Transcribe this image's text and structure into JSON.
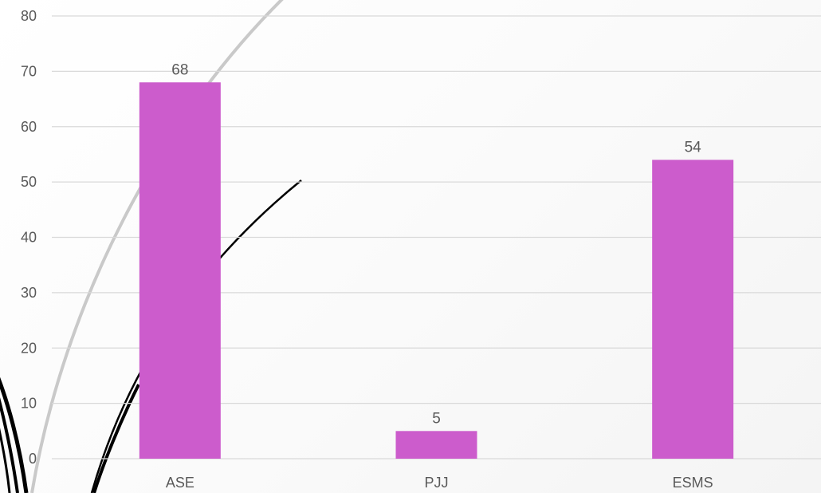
{
  "chart_data": {
    "type": "bar",
    "categories": [
      "ASE",
      "PJJ",
      "ESMS"
    ],
    "values": [
      68,
      5,
      54
    ],
    "data_labels": [
      "68",
      "5",
      "54"
    ],
    "title": "",
    "xlabel": "",
    "ylabel": "",
    "ylim": [
      0,
      80
    ],
    "yticks": [
      0,
      10,
      20,
      30,
      40,
      50,
      60,
      70,
      80
    ],
    "grid": true,
    "legend": "none",
    "bar_color": "#CC5CCC"
  },
  "background": {
    "decorative_curves": true,
    "curve_colors": [
      "#c8c8c8",
      "#000000"
    ]
  }
}
